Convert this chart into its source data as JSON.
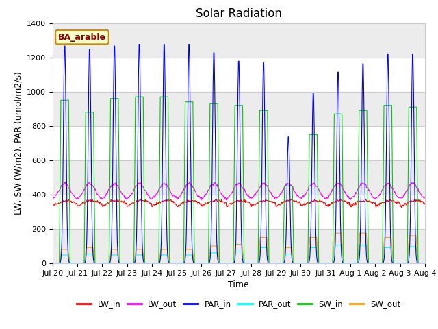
{
  "title": "Solar Radiation",
  "ylabel": "LW, SW (W/m2), PAR (umol/m2/s)",
  "xlabel": "Time",
  "ylim": [
    0,
    1400
  ],
  "yticks": [
    0,
    200,
    400,
    600,
    800,
    1000,
    1200,
    1400
  ],
  "annotation": "BA_arable",
  "line_colors": {
    "LW_in": "#ff0000",
    "LW_out": "#ff00ff",
    "PAR_in": "#0000ff",
    "PAR_out": "#00ffff",
    "SW_in": "#00cc00",
    "SW_out": "#ffa500"
  },
  "legend_labels": [
    "LW_in",
    "LW_out",
    "PAR_in",
    "PAR_out",
    "SW_in",
    "SW_out"
  ],
  "n_days": 15,
  "par_peaks": [
    1290,
    1270,
    1290,
    1300,
    1300,
    1300,
    1250,
    1200,
    1190,
    750,
    1010,
    1135,
    1185,
    1240,
    1240
  ],
  "sw_peaks": [
    950,
    880,
    960,
    970,
    970,
    940,
    930,
    920,
    890,
    450,
    750,
    870,
    890,
    920,
    910
  ],
  "sw_out_peaks": [
    80,
    90,
    80,
    80,
    80,
    80,
    100,
    110,
    150,
    90,
    150,
    175,
    175,
    150,
    160
  ],
  "par_out_peaks": [
    80,
    90,
    80,
    80,
    80,
    80,
    100,
    110,
    150,
    90,
    150,
    175,
    175,
    150,
    160
  ],
  "lw_in_base": 340,
  "lw_out_base": 370,
  "grid_color": "#cccccc",
  "title_fontsize": 12,
  "label_fontsize": 9,
  "tick_fontsize": 8
}
